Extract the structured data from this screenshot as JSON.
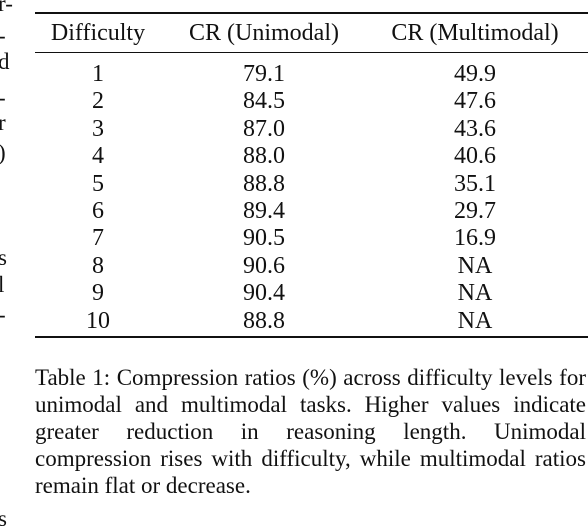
{
  "margin_fragments": [
    "r-",
    "-",
    "d",
    "-",
    "r",
    ")",
    "s",
    "l",
    "-",
    "s"
  ],
  "table": {
    "header": [
      "Difficulty",
      "CR (Unimodal)",
      "CR (Multimodal)"
    ],
    "rows": [
      [
        "1",
        "79.1",
        "49.9"
      ],
      [
        "2",
        "84.5",
        "47.6"
      ],
      [
        "3",
        "87.0",
        "43.6"
      ],
      [
        "4",
        "88.0",
        "40.6"
      ],
      [
        "5",
        "88.8",
        "35.1"
      ],
      [
        "6",
        "89.4",
        "29.7"
      ],
      [
        "7",
        "90.5",
        "16.9"
      ],
      [
        "8",
        "90.6",
        "NA"
      ],
      [
        "9",
        "90.4",
        "NA"
      ],
      [
        "10",
        "88.8",
        "NA"
      ]
    ],
    "caption": "Table 1:  Compression ratios (%) across difficulty levels for unimodal and multimodal tasks. Higher values indicate greater reduction in reasoning length. Unimodal compression rises with difficulty, while multimodal ratios remain flat or decrease."
  }
}
